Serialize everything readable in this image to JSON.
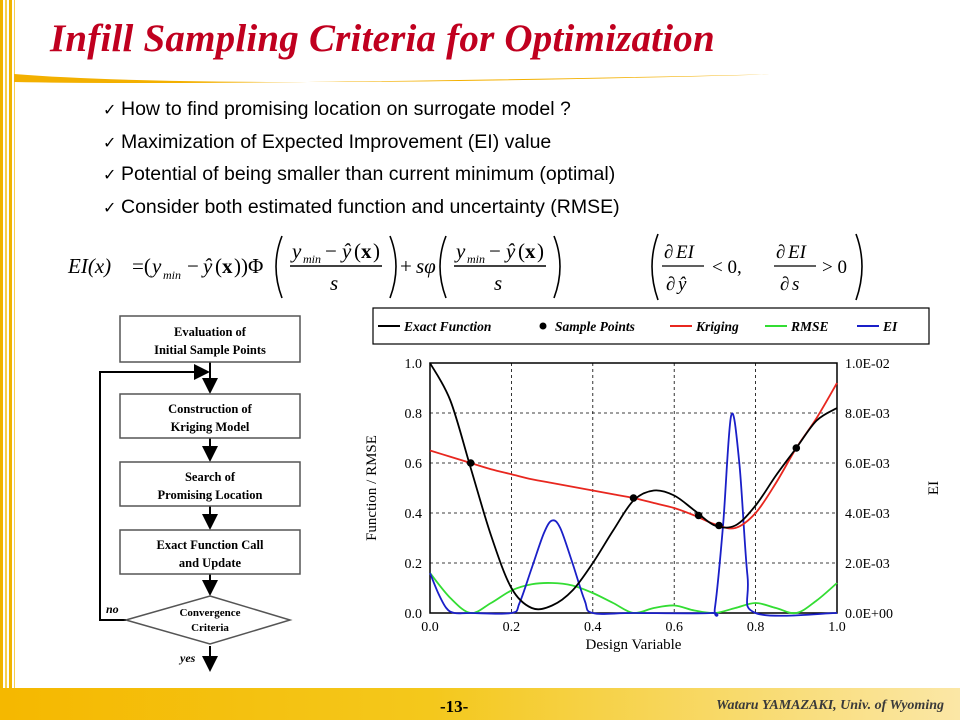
{
  "slide": {
    "title": "Infill Sampling Criteria for Optimization",
    "page_number": "-13-",
    "author": "Wataru YAMAZAKI, Univ. of Wyoming",
    "accent_color": "#c0001f",
    "bar_color": "#f5b800"
  },
  "bullets": [
    {
      "text": "How to find promising location on surrogate model ?",
      "icon": "checkmark-icon"
    },
    {
      "text": "Maximization of Expected Improvement (EI) value",
      "icon": "checkmark-icon"
    },
    {
      "text": "Potential of being smaller than current minimum (optimal)",
      "icon": "checkmark-icon"
    },
    {
      "text": "Consider both estimated function and uncertainty (RMSE)",
      "icon": "checkmark-icon"
    }
  ],
  "formula": {
    "lhs": "EI(x)",
    "condition_1": "∂EI/∂ŷ < 0",
    "condition_2": "∂EI/∂s > 0"
  },
  "flowchart": {
    "steps": [
      [
        "Evaluation of",
        "Initial Sample Points"
      ],
      [
        "Construction of",
        "Kriging Model"
      ],
      [
        "Search of",
        "Promising Location"
      ],
      [
        "Exact Function Call",
        "and Update"
      ]
    ],
    "decision": [
      "Convergence",
      "Criteria"
    ],
    "no_label": "no",
    "yes_label": "yes"
  },
  "chart_data": {
    "type": "line",
    "xlabel": "Design Variable",
    "ylabel": "Function / RMSE",
    "y2label": "EI",
    "xlim": [
      0,
      1
    ],
    "ylim": [
      0,
      1
    ],
    "y2lim": [
      0,
      0.01
    ],
    "x_ticks": [
      "0.0",
      "0.2",
      "0.4",
      "0.6",
      "0.8",
      "1.0"
    ],
    "y_ticks": [
      "0.0",
      "0.2",
      "0.4",
      "0.6",
      "0.8",
      "1.0"
    ],
    "y2_ticks": [
      "0.0E+00",
      "2.0E-03",
      "4.0E-03",
      "6.0E-03",
      "8.0E-03",
      "1.0E-02"
    ],
    "grid": true,
    "legend_position": "top",
    "series": [
      {
        "name": "Exact Function",
        "color": "#000000",
        "axis": "left",
        "x": [
          0,
          0.05,
          0.1,
          0.15,
          0.2,
          0.25,
          0.3,
          0.35,
          0.4,
          0.45,
          0.5,
          0.55,
          0.6,
          0.65,
          0.7,
          0.75,
          0.8,
          0.85,
          0.9,
          0.95,
          1.0
        ],
        "y": [
          1.0,
          0.85,
          0.58,
          0.31,
          0.1,
          0.02,
          0.03,
          0.09,
          0.2,
          0.33,
          0.45,
          0.49,
          0.47,
          0.41,
          0.35,
          0.35,
          0.43,
          0.55,
          0.66,
          0.77,
          0.82
        ]
      },
      {
        "name": "Sample Points",
        "color": "#000000",
        "axis": "left",
        "marker": "dot",
        "x": [
          0.1,
          0.5,
          0.66,
          0.71,
          0.9
        ],
        "y": [
          0.6,
          0.46,
          0.39,
          0.35,
          0.66
        ]
      },
      {
        "name": "Kriging",
        "color": "#e8271f",
        "axis": "left",
        "x": [
          0,
          0.05,
          0.1,
          0.15,
          0.2,
          0.25,
          0.3,
          0.35,
          0.4,
          0.45,
          0.5,
          0.55,
          0.6,
          0.65,
          0.7,
          0.75,
          0.8,
          0.85,
          0.9,
          0.95,
          1.0
        ],
        "y": [
          0.65,
          0.625,
          0.6,
          0.575,
          0.555,
          0.535,
          0.52,
          0.505,
          0.49,
          0.475,
          0.46,
          0.44,
          0.42,
          0.39,
          0.355,
          0.34,
          0.4,
          0.52,
          0.66,
          0.78,
          0.92
        ]
      },
      {
        "name": "RMSE",
        "color": "#33dd33",
        "axis": "left",
        "x": [
          0,
          0.05,
          0.1,
          0.15,
          0.2,
          0.25,
          0.3,
          0.35,
          0.4,
          0.45,
          0.5,
          0.55,
          0.6,
          0.65,
          0.7,
          0.75,
          0.8,
          0.85,
          0.9,
          0.95,
          1.0
        ],
        "y": [
          0.16,
          0.06,
          0.0,
          0.04,
          0.09,
          0.115,
          0.12,
          0.11,
          0.08,
          0.04,
          0.0,
          0.02,
          0.03,
          0.01,
          0.0,
          0.02,
          0.04,
          0.02,
          0.0,
          0.05,
          0.12
        ]
      },
      {
        "name": "EI",
        "color": "#1a1fc8",
        "axis": "right",
        "x": [
          0,
          0.02,
          0.04,
          0.06,
          0.1,
          0.2,
          0.22,
          0.25,
          0.28,
          0.3,
          0.32,
          0.35,
          0.38,
          0.4,
          0.5,
          0.69,
          0.7,
          0.72,
          0.74,
          0.76,
          0.78,
          0.8,
          1.0
        ],
        "y": [
          0.0016,
          0.0008,
          0.0002,
          0.0,
          0.0,
          0.0,
          0.0004,
          0.0018,
          0.0032,
          0.0037,
          0.0034,
          0.002,
          0.0005,
          0.0,
          0.0,
          0.0,
          0.0002,
          0.0035,
          0.0079,
          0.006,
          0.0015,
          0.0,
          0.0
        ]
      }
    ]
  }
}
